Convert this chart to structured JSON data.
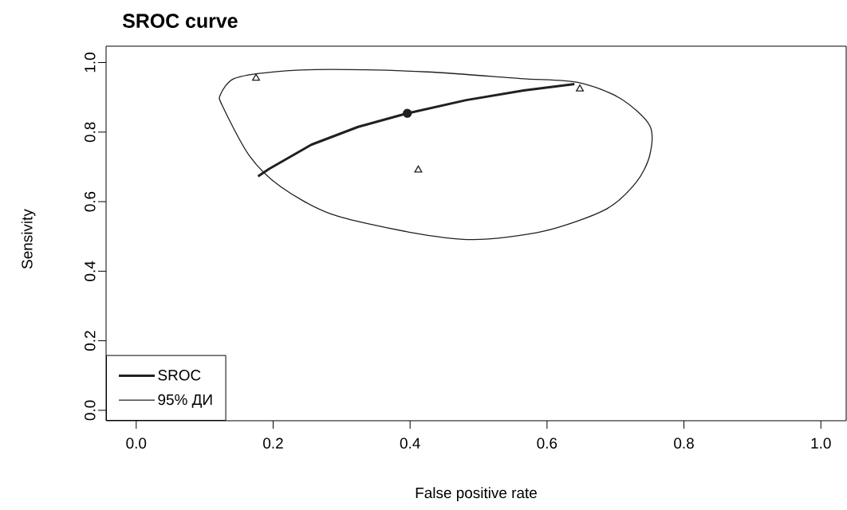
{
  "chart_data": {
    "type": "line",
    "title": "SROC curve",
    "xlabel": "False positive rate",
    "ylabel": "Sensivity",
    "xlim": [
      -0.044,
      1.037
    ],
    "ylim": [
      -0.03,
      1.047
    ],
    "xticks": [
      {
        "value": 0,
        "label": "0.0"
      },
      0.2,
      0.4,
      0.6,
      0.8,
      {
        "value": 1,
        "label": "1.0"
      }
    ],
    "yticks": [
      {
        "value": 0,
        "label": "0.0"
      },
      0.2,
      0.4,
      0.6,
      0.8,
      {
        "value": 1,
        "label": "1.0"
      }
    ],
    "grid": false,
    "legend": "bottom left",
    "series": [
      {
        "name": "SROC",
        "type": "line",
        "color": "#231f20",
        "marker": "none",
        "x": [
          0.178,
          0.194,
          0.256,
          0.324,
          0.396,
          0.482,
          0.566,
          0.64
        ],
        "values": [
          0.673,
          0.694,
          0.764,
          0.815,
          0.854,
          0.892,
          0.92,
          0.938
        ]
      },
      {
        "name": "95% ДИ",
        "type": "other",
        "color": "#231f20",
        "marker": "none"
      },
      {
        "type": "scatter",
        "color": "#231f20",
        "marker": "circle",
        "x": [
          0.396
        ],
        "values": [
          0.854
        ]
      },
      {
        "type": "scatter",
        "color": "#231f20",
        "marker": "triangle",
        "x": [
          0.175,
          0.648,
          0.412
        ],
        "values": [
          0.955,
          0.924,
          0.691
        ]
      }
    ]
  }
}
